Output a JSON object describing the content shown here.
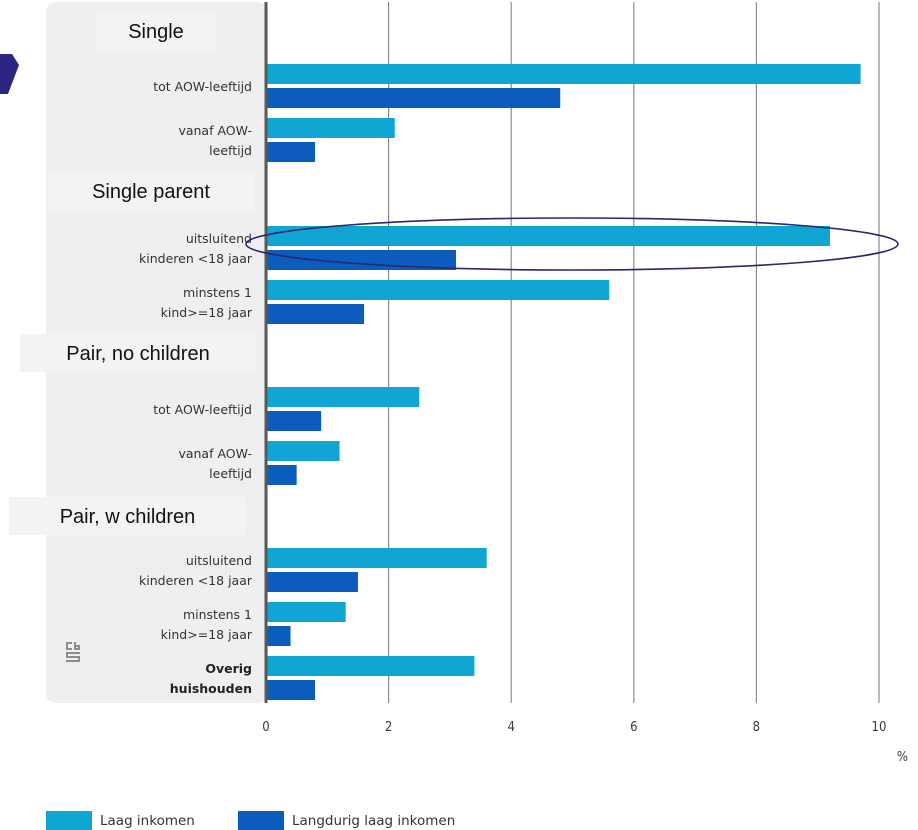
{
  "chart_data": {
    "type": "bar",
    "orientation": "horizontal",
    "x_unit": "%",
    "xlim": [
      0,
      10
    ],
    "x_ticks": [
      "0",
      "2",
      "4",
      "6",
      "8",
      "10"
    ],
    "grid": true,
    "legend_position": "bottom-left",
    "colors": {
      "laag": "#10a5d2",
      "langdurig": "#0b5cbd",
      "panel": "#efefef",
      "axis": "#5a5a5a",
      "ellipse": "#28286e"
    },
    "groups": [
      {
        "label": "Single",
        "categories": [
          {
            "label": [
              "tot AOW-leeftijd"
            ],
            "values": [
              9.7,
              4.8
            ]
          },
          {
            "label": [
              "vanaf AOW-",
              "leeftijd"
            ],
            "values": [
              2.1,
              0.8
            ]
          }
        ]
      },
      {
        "label": "Single parent",
        "categories": [
          {
            "label": [
              "uitsluitend",
              "kinderen <18 jaar"
            ],
            "values": [
              9.2,
              3.1
            ]
          },
          {
            "label": [
              "minstens 1",
              "kind>=18 jaar"
            ],
            "values": [
              5.6,
              1.6
            ]
          }
        ]
      },
      {
        "label": "Pair, no children",
        "categories": [
          {
            "label": [
              "tot AOW-leeftijd"
            ],
            "values": [
              2.5,
              0.9
            ]
          },
          {
            "label": [
              "vanaf AOW-",
              "leeftijd"
            ],
            "values": [
              1.2,
              0.5
            ]
          }
        ]
      },
      {
        "label": "Pair, w children",
        "categories": [
          {
            "label": [
              "uitsluitend",
              "kinderen <18 jaar"
            ],
            "values": [
              3.6,
              1.5
            ]
          },
          {
            "label": [
              "minstens 1",
              "kind>=18 jaar"
            ],
            "values": [
              1.3,
              0.4
            ]
          }
        ]
      },
      {
        "label": "",
        "categories": [
          {
            "label": [
              "Overig",
              "huishouden"
            ],
            "values": [
              3.4,
              0.8
            ],
            "bold": true
          }
        ]
      }
    ],
    "series": [
      {
        "name": "Laag inkomen",
        "key": "laag"
      },
      {
        "name": "Langdurig laag inkomen",
        "key": "langdurig"
      }
    ],
    "highlight": "uitsluitend kinderen <18 jaar"
  }
}
